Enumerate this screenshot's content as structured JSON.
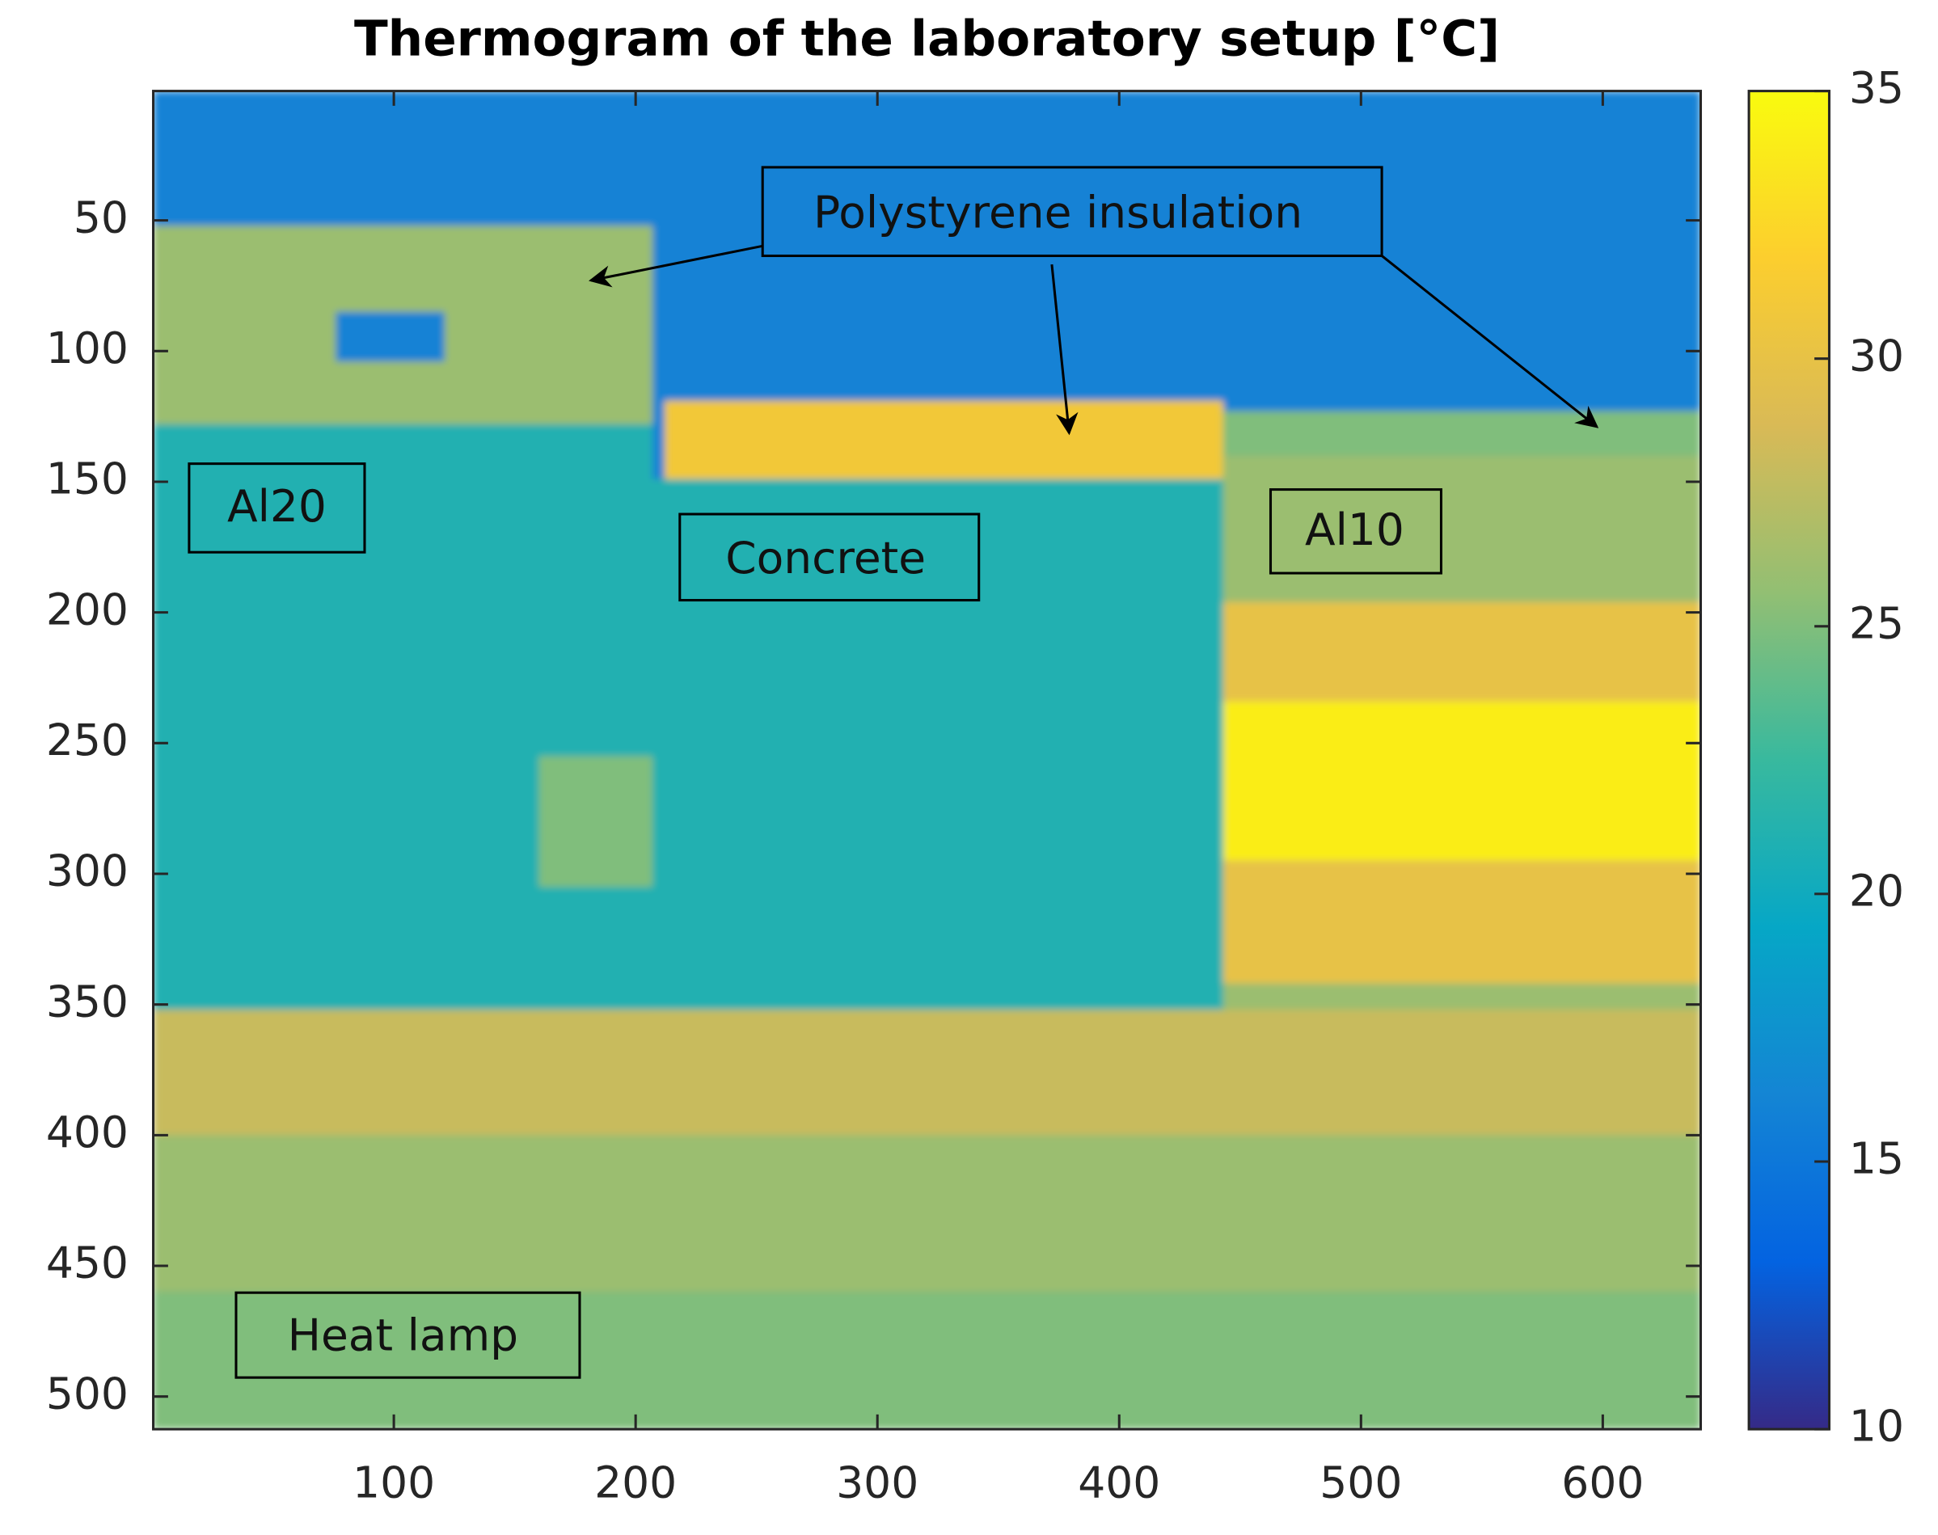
{
  "chart_data": {
    "type": "heatmap",
    "title": "Thermogram of the laboratory setup [°C]",
    "xlim": [
      0.5,
      640.5
    ],
    "ylim": [
      512.5,
      0.5
    ],
    "xticks": [
      100,
      200,
      300,
      400,
      500,
      600
    ],
    "yticks": [
      50,
      100,
      150,
      200,
      250,
      300,
      350,
      400,
      450,
      500
    ],
    "colormap": "parula",
    "clim": [
      10,
      35
    ],
    "cticks": [
      10,
      15,
      20,
      25,
      30,
      35
    ],
    "background": 16,
    "regions": [
      {
        "x": [
          0.5,
          207
        ],
        "y": [
          52,
          128
        ],
        "value": 26
      },
      {
        "x": [
          76,
          121
        ],
        "y": [
          85,
          104
        ],
        "value": 16
      },
      {
        "x": [
          0.5,
          207
        ],
        "y": [
          128,
          352
        ],
        "value": 21
      },
      {
        "x": [
          160,
          207
        ],
        "y": [
          255,
          305
        ],
        "value": 25
      },
      {
        "x": [
          212,
          443
        ],
        "y": [
          119,
          149
        ],
        "value": 31
      },
      {
        "x": [
          207,
          443
        ],
        "y": [
          149,
          356
        ],
        "value": 21
      },
      {
        "x": [
          443,
          640.5
        ],
        "y": [
          123,
          140
        ],
        "value": 25
      },
      {
        "x": [
          443,
          640.5
        ],
        "y": [
          140,
          196
        ],
        "value": 26
      },
      {
        "x": [
          443,
          640.5
        ],
        "y": [
          196,
          234
        ],
        "value": 30
      },
      {
        "x": [
          443,
          640.5
        ],
        "y": [
          234,
          295
        ],
        "value": 34
      },
      {
        "x": [
          443,
          640.5
        ],
        "y": [
          295,
          342
        ],
        "value": 30
      },
      {
        "x": [
          443,
          640.5
        ],
        "y": [
          342,
          356
        ],
        "value": 26
      },
      {
        "x": [
          0.5,
          640.5
        ],
        "y": [
          352,
          400
        ],
        "value": 28
      },
      {
        "x": [
          0.5,
          640.5
        ],
        "y": [
          400,
          460
        ],
        "value": 26
      },
      {
        "x": [
          0.5,
          640.5
        ],
        "y": [
          460,
          512.5
        ],
        "value": 25
      }
    ],
    "annotations": [
      "Polystyrene insulation",
      "Al20",
      "Concrete",
      "Al10",
      "Heat lamp"
    ]
  }
}
